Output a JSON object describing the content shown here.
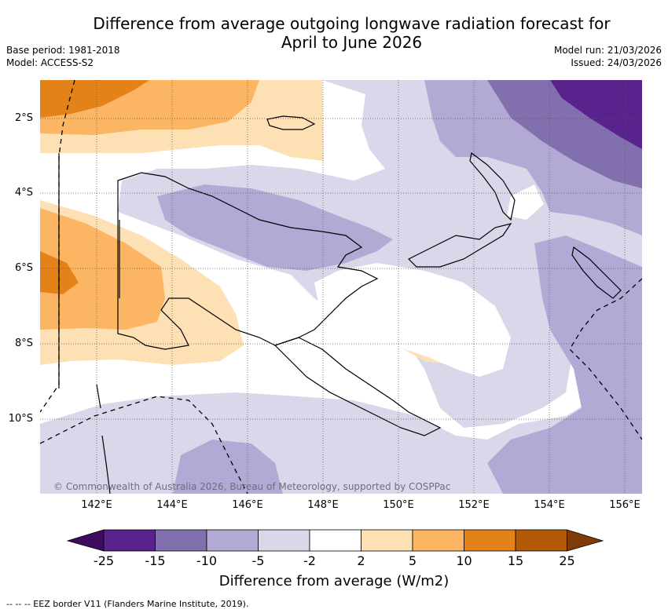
{
  "title_line1": "Difference from average outgoing longwave radiation forecast for",
  "title_line2": "April to June 2026",
  "base_period": "Base period: 1981-2018",
  "model": "Model: ACCESS-S2",
  "model_run": "Model run: 21/03/2026",
  "issued": "Issued: 24/03/2026",
  "lat_labels": [
    "2°S",
    "4°S",
    "6°S",
    "8°S",
    "10°S"
  ],
  "lon_labels": [
    "142°E",
    "144°E",
    "146°E",
    "148°E",
    "150°E",
    "152°E",
    "154°E",
    "156°E"
  ],
  "copyright": "© Commonwealth of Australia 2026, Bureau of Meteorology, supported by COSPPac",
  "colorbar": {
    "ticks": [
      "-25",
      "-15",
      "-10",
      "-5",
      "-2",
      "2",
      "5",
      "10",
      "15",
      "25"
    ],
    "colors": [
      "#3b0c5f",
      "#5a228d",
      "#8170ad",
      "#b2a9d4",
      "#d9d8ea",
      "#ffffff",
      "#fde0b4",
      "#fbb563",
      "#e38219",
      "#b35806",
      "#7f3b08"
    ],
    "title": "Difference from average (W/m2)"
  },
  "legend_eez": "-- -- -- EEZ border V11 (Flanders Marine Institute, 2019)."
}
